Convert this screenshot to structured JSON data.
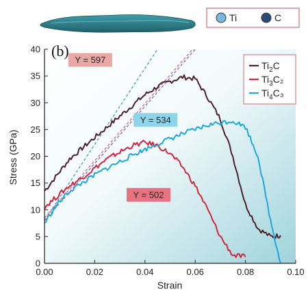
{
  "top_legend": {
    "items": [
      {
        "label": "Ti",
        "color": "#7ab6de"
      },
      {
        "label": "C",
        "color": "#2c4a78"
      }
    ]
  },
  "panel_label": "(b)",
  "colors": {
    "sheet_top": "#3f9ea8",
    "sheet_bottom": "#1f5f6a",
    "bg_gradient_start": "#ffffff",
    "bg_gradient_end": "#9fd3dc",
    "dash_teal": "#4d9c9a",
    "dash_pink": "#d2628a",
    "dash_purple": "#7b6bb6"
  },
  "chart_data": {
    "type": "line",
    "title": "",
    "xlabel": "Strain",
    "ylabel": "Stress (GPa)",
    "xlim": [
      0,
      0.1
    ],
    "ylim": [
      0,
      40
    ],
    "xticks": [
      "0.00",
      "0.02",
      "0.04",
      "0.06",
      "0.08",
      "0.10"
    ],
    "yticks": [
      "0",
      "5",
      "10",
      "15",
      "20",
      "25",
      "30",
      "35",
      "40"
    ],
    "grid": false,
    "legend_position": "top-right",
    "series": [
      {
        "name": "Ti₂C",
        "legend_base": "Ti",
        "legend_sub": "2",
        "legend_rest": "C",
        "color": "#4a1f2b",
        "x": [
          0.0,
          0.005,
          0.01,
          0.015,
          0.02,
          0.025,
          0.03,
          0.035,
          0.04,
          0.045,
          0.05,
          0.055,
          0.06,
          0.065,
          0.07,
          0.075,
          0.08,
          0.085,
          0.09,
          0.094
        ],
        "y": [
          13.5,
          16.5,
          19.5,
          21.5,
          23.5,
          25.5,
          27.5,
          29.5,
          31.5,
          33.0,
          34.0,
          34.8,
          34.5,
          31.0,
          27.0,
          20.0,
          11.0,
          6.5,
          5.0,
          5.2
        ]
      },
      {
        "name": "Ti₃C₂",
        "legend_base": "Ti",
        "legend_sub": "3",
        "legend_rest": "C₂",
        "color": "#d1243e",
        "x": [
          0.0,
          0.005,
          0.01,
          0.015,
          0.02,
          0.025,
          0.03,
          0.035,
          0.04,
          0.045,
          0.05,
          0.055,
          0.06,
          0.065,
          0.07,
          0.075,
          0.08
        ],
        "y": [
          10.5,
          12.5,
          14.5,
          16.0,
          17.8,
          19.5,
          20.8,
          22.0,
          22.6,
          22.0,
          20.5,
          18.0,
          14.5,
          10.0,
          5.0,
          1.5,
          1.2
        ]
      },
      {
        "name": "Ti₄C₃",
        "legend_base": "Ti",
        "legend_sub": "4",
        "legend_rest": "C₃",
        "color": "#1da7dd",
        "x": [
          0.0,
          0.005,
          0.01,
          0.015,
          0.02,
          0.025,
          0.03,
          0.035,
          0.04,
          0.045,
          0.05,
          0.055,
          0.06,
          0.065,
          0.07,
          0.075,
          0.08,
          0.085,
          0.09,
          0.094
        ],
        "y": [
          7.5,
          11.0,
          13.5,
          15.0,
          16.5,
          17.8,
          19.0,
          20.2,
          21.3,
          22.3,
          23.3,
          24.2,
          25.0,
          25.8,
          26.3,
          26.6,
          25.5,
          20.0,
          8.0,
          0.0
        ]
      }
    ],
    "reference_lines": [
      {
        "x": [
          0.0,
          0.045
        ],
        "y": [
          8.0,
          40.0
        ],
        "color": "#4d9c9a"
      },
      {
        "x": [
          0.0,
          0.059
        ],
        "y": [
          8.5,
          40.0
        ],
        "color": "#d2628a"
      },
      {
        "x": [
          0.0,
          0.06
        ],
        "y": [
          8.0,
          40.0
        ],
        "color": "#7b6bb6"
      }
    ],
    "annotations": [
      {
        "text": "Y = 597",
        "x": 0.0095,
        "y": 38.0,
        "bg": "#e9a8a4"
      },
      {
        "text": "Y = 534",
        "x": 0.0355,
        "y": 26.8,
        "bg": "#8fd5ea"
      },
      {
        "text": "Y = 502",
        "x": 0.0327,
        "y": 12.8,
        "bg": "#e6737f"
      }
    ]
  }
}
